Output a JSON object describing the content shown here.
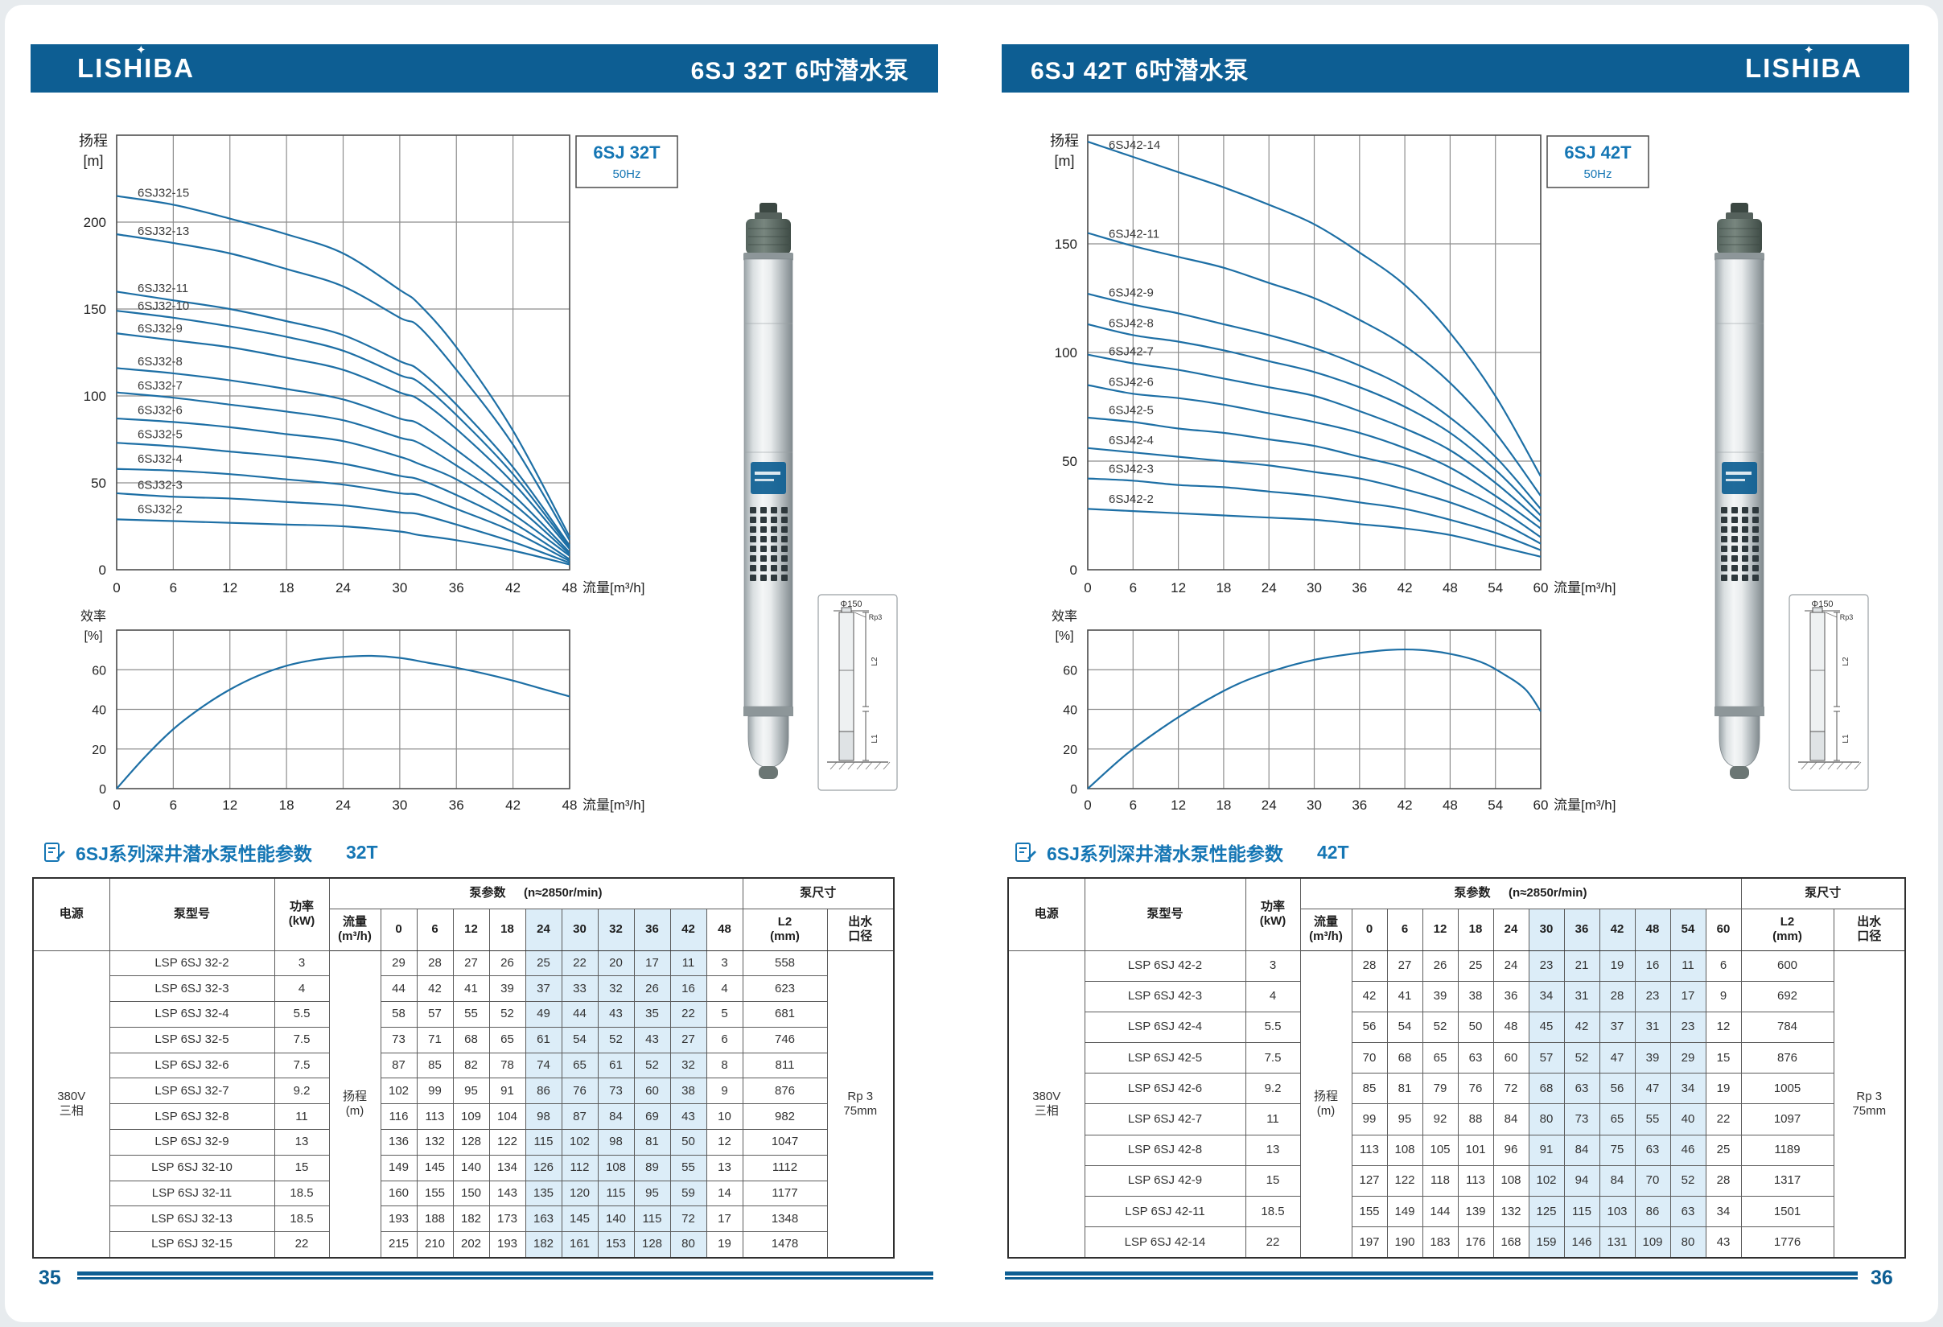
{
  "colors": {
    "header_bg": "#0d5e93",
    "accent_blue": "#1576b4",
    "curve": "#1d6fa5",
    "highlight": "#dcedf8",
    "grid": "#8e8e8e",
    "axis": "#4f4f4f",
    "text": "#222222",
    "page_bg": "#ffffff"
  },
  "shared": {
    "axis": {
      "head_label": "扬程\n[m]",
      "eff_label": "效率\n[%]",
      "flow_label": "流量[m³/h]"
    },
    "table_labels": {
      "power_supply": "电源",
      "model": "泵型号",
      "power": "功率\n(kW)",
      "params": "泵参数",
      "speed": "(n≈2850r/min)",
      "flow": "流量\n(m³/h)",
      "head_unit": "扬程\n(m)",
      "size": "泵尺寸",
      "l2": "L2\n(mm)",
      "outlet": "出水\n口径",
      "supply_value": "380V\n三相",
      "outlet_value": "Rp 3\n75mm"
    },
    "star_icon": "✦"
  },
  "pages": [
    {
      "page_number": "35",
      "logo": "LISHIBA",
      "title": "6SJ 32T 6吋潜水泵",
      "model_box": {
        "model": "6SJ 32T",
        "freq": "50Hz"
      },
      "table_title": {
        "series": "6SJ系列深井潜水泵性能参数",
        "variant": "32T"
      },
      "dim": {
        "phi": "Φ150",
        "rp": "Rp3",
        "l2": "L2",
        "l1": "L1"
      },
      "chart_data": {
        "type": "line",
        "title": "6SJ 32T 扬程-流量曲线",
        "xlabel": "流量[m³/h]",
        "ylabel": "扬程[m]",
        "x": [
          0,
          6,
          12,
          18,
          24,
          30,
          32,
          36,
          42,
          48
        ],
        "xticks": [
          0,
          6,
          12,
          18,
          24,
          30,
          36,
          42,
          48
        ],
        "ylim": [
          0,
          250
        ],
        "yticks": [
          50,
          100,
          150,
          200
        ],
        "series": [
          {
            "name": "6SJ32-15",
            "values": [
              215,
              210,
              202,
              193,
              182,
              161,
              153,
              128,
              80,
              19
            ]
          },
          {
            "name": "6SJ32-13",
            "values": [
              193,
              188,
              182,
              173,
              163,
              145,
              140,
              115,
              72,
              17
            ]
          },
          {
            "name": "6SJ32-11",
            "values": [
              160,
              155,
              150,
              143,
              135,
              120,
              115,
              95,
              59,
              14
            ]
          },
          {
            "name": "6SJ32-10",
            "values": [
              149,
              145,
              140,
              134,
              126,
              112,
              108,
              89,
              55,
              13
            ]
          },
          {
            "name": "6SJ32-9",
            "values": [
              136,
              132,
              128,
              122,
              115,
              102,
              98,
              81,
              50,
              12
            ]
          },
          {
            "name": "6SJ32-8",
            "values": [
              116,
              113,
              109,
              104,
              98,
              87,
              84,
              69,
              43,
              10
            ]
          },
          {
            "name": "6SJ32-7",
            "values": [
              102,
              99,
              95,
              91,
              86,
              76,
              73,
              60,
              38,
              9
            ]
          },
          {
            "name": "6SJ32-6",
            "values": [
              87,
              85,
              82,
              78,
              74,
              65,
              61,
              52,
              32,
              8
            ]
          },
          {
            "name": "6SJ32-5",
            "values": [
              73,
              71,
              68,
              65,
              61,
              54,
              52,
              43,
              27,
              6
            ]
          },
          {
            "name": "6SJ32-4",
            "values": [
              58,
              57,
              55,
              52,
              49,
              44,
              43,
              35,
              22,
              5
            ]
          },
          {
            "name": "6SJ32-3",
            "values": [
              44,
              42,
              41,
              39,
              37,
              33,
              32,
              26,
              16,
              4
            ]
          },
          {
            "name": "6SJ32-2",
            "values": [
              29,
              28,
              27,
              26,
              25,
              22,
              20,
              17,
              11,
              3
            ]
          }
        ]
      },
      "eff_chart": {
        "type": "line",
        "xlabel": "流量[m³/h]",
        "ylabel": "效率[%]",
        "ylim": [
          0,
          80
        ],
        "yticks": [
          20,
          40,
          60
        ],
        "xticks": [
          0,
          6,
          12,
          18,
          24,
          30,
          36,
          42,
          48
        ],
        "x": [
          0,
          3,
          6,
          9,
          12,
          15,
          18,
          21,
          24,
          27,
          30,
          33,
          36,
          39,
          42,
          45,
          48
        ],
        "y": [
          0,
          16,
          30,
          41,
          50,
          57,
          62,
          65,
          66.5,
          67,
          66,
          63.5,
          61,
          58,
          54.5,
          50.5,
          46.5
        ]
      },
      "table": {
        "flow_cols": [
          "0",
          "6",
          "12",
          "18",
          "24",
          "30",
          "32",
          "36",
          "42",
          "48"
        ],
        "highlight": [
          4,
          5,
          6,
          7,
          8
        ],
        "rows": [
          {
            "model": "LSP 6SJ 32-2",
            "kw": "3",
            "heads": [
              "29",
              "28",
              "27",
              "26",
              "25",
              "22",
              "20",
              "17",
              "11",
              "3"
            ],
            "l2": "558"
          },
          {
            "model": "LSP 6SJ 32-3",
            "kw": "4",
            "heads": [
              "44",
              "42",
              "41",
              "39",
              "37",
              "33",
              "32",
              "26",
              "16",
              "4"
            ],
            "l2": "623"
          },
          {
            "model": "LSP 6SJ 32-4",
            "kw": "5.5",
            "heads": [
              "58",
              "57",
              "55",
              "52",
              "49",
              "44",
              "43",
              "35",
              "22",
              "5"
            ],
            "l2": "681"
          },
          {
            "model": "LSP 6SJ 32-5",
            "kw": "7.5",
            "heads": [
              "73",
              "71",
              "68",
              "65",
              "61",
              "54",
              "52",
              "43",
              "27",
              "6"
            ],
            "l2": "746"
          },
          {
            "model": "LSP 6SJ 32-6",
            "kw": "7.5",
            "heads": [
              "87",
              "85",
              "82",
              "78",
              "74",
              "65",
              "61",
              "52",
              "32",
              "8"
            ],
            "l2": "811"
          },
          {
            "model": "LSP 6SJ 32-7",
            "kw": "9.2",
            "heads": [
              "102",
              "99",
              "95",
              "91",
              "86",
              "76",
              "73",
              "60",
              "38",
              "9"
            ],
            "l2": "876"
          },
          {
            "model": "LSP 6SJ 32-8",
            "kw": "11",
            "heads": [
              "116",
              "113",
              "109",
              "104",
              "98",
              "87",
              "84",
              "69",
              "43",
              "10"
            ],
            "l2": "982"
          },
          {
            "model": "LSP 6SJ 32-9",
            "kw": "13",
            "heads": [
              "136",
              "132",
              "128",
              "122",
              "115",
              "102",
              "98",
              "81",
              "50",
              "12"
            ],
            "l2": "1047"
          },
          {
            "model": "LSP 6SJ 32-10",
            "kw": "15",
            "heads": [
              "149",
              "145",
              "140",
              "134",
              "126",
              "112",
              "108",
              "89",
              "55",
              "13"
            ],
            "l2": "1112"
          },
          {
            "model": "LSP 6SJ 32-11",
            "kw": "18.5",
            "heads": [
              "160",
              "155",
              "150",
              "143",
              "135",
              "120",
              "115",
              "95",
              "59",
              "14"
            ],
            "l2": "1177"
          },
          {
            "model": "LSP 6SJ 32-13",
            "kw": "18.5",
            "heads": [
              "193",
              "188",
              "182",
              "173",
              "163",
              "145",
              "140",
              "115",
              "72",
              "17"
            ],
            "l2": "1348"
          },
          {
            "model": "LSP 6SJ 32-15",
            "kw": "22",
            "heads": [
              "215",
              "210",
              "202",
              "193",
              "182",
              "161",
              "153",
              "128",
              "80",
              "19"
            ],
            "l2": "1478"
          }
        ]
      }
    },
    {
      "page_number": "36",
      "logo": "LISHIBA",
      "title": "6SJ 42T 6吋潜水泵",
      "model_box": {
        "model": "6SJ 42T",
        "freq": "50Hz"
      },
      "table_title": {
        "series": "6SJ系列深井潜水泵性能参数",
        "variant": "42T"
      },
      "dim": {
        "phi": "Φ150",
        "rp": "Rp3",
        "l2": "L2",
        "l1": "L1"
      },
      "chart_data": {
        "type": "line",
        "title": "6SJ 42T 扬程-流量曲线",
        "xlabel": "流量[m³/h]",
        "ylabel": "扬程[m]",
        "x": [
          0,
          6,
          12,
          18,
          24,
          30,
          36,
          42,
          48,
          54,
          60
        ],
        "xticks": [
          0,
          6,
          12,
          18,
          24,
          30,
          36,
          42,
          48,
          54,
          60
        ],
        "ylim": [
          0,
          200
        ],
        "yticks": [
          50,
          100,
          150
        ],
        "series": [
          {
            "name": "6SJ42-14",
            "values": [
              197,
              190,
              183,
              176,
              168,
              159,
              146,
              131,
              109,
              80,
              43
            ]
          },
          {
            "name": "6SJ42-11",
            "values": [
              155,
              149,
              144,
              139,
              132,
              125,
              115,
              103,
              86,
              63,
              34
            ]
          },
          {
            "name": "6SJ42-9",
            "values": [
              127,
              122,
              118,
              113,
              108,
              102,
              94,
              84,
              70,
              52,
              28
            ]
          },
          {
            "name": "6SJ42-8",
            "values": [
              113,
              108,
              105,
              101,
              96,
              91,
              84,
              75,
              63,
              46,
              25
            ]
          },
          {
            "name": "6SJ42-7",
            "values": [
              99,
              95,
              92,
              88,
              84,
              80,
              73,
              65,
              55,
              40,
              22
            ]
          },
          {
            "name": "6SJ42-6",
            "values": [
              85,
              81,
              79,
              76,
              72,
              68,
              63,
              56,
              47,
              34,
              19
            ]
          },
          {
            "name": "6SJ42-5",
            "values": [
              70,
              68,
              65,
              63,
              60,
              57,
              52,
              47,
              39,
              29,
              15
            ]
          },
          {
            "name": "6SJ42-4",
            "values": [
              56,
              54,
              52,
              50,
              48,
              45,
              42,
              37,
              31,
              23,
              12
            ]
          },
          {
            "name": "6SJ42-3",
            "values": [
              42,
              41,
              39,
              38,
              36,
              34,
              31,
              28,
              23,
              17,
              9
            ]
          },
          {
            "name": "6SJ42-2",
            "values": [
              28,
              27,
              26,
              25,
              24,
              23,
              21,
              19,
              16,
              11,
              6
            ]
          }
        ]
      },
      "eff_chart": {
        "type": "line",
        "xlabel": "流量[m³/h]",
        "ylabel": "效率[%]",
        "ylim": [
          0,
          80
        ],
        "yticks": [
          20,
          40,
          60
        ],
        "xticks": [
          0,
          6,
          12,
          18,
          24,
          30,
          36,
          42,
          48,
          54,
          60
        ],
        "x": [
          0,
          5,
          10,
          15,
          20,
          25,
          30,
          35,
          40,
          44,
          48,
          52,
          55,
          58,
          60
        ],
        "y": [
          0,
          17,
          31,
          43,
          53,
          60,
          65,
          68,
          70,
          70,
          68,
          64,
          58,
          50,
          39
        ]
      },
      "table": {
        "flow_cols": [
          "0",
          "6",
          "12",
          "18",
          "24",
          "30",
          "36",
          "42",
          "48",
          "54",
          "60"
        ],
        "highlight": [
          5,
          6,
          7,
          8,
          9
        ],
        "rows": [
          {
            "model": "LSP 6SJ 42-2",
            "kw": "3",
            "heads": [
              "28",
              "27",
              "26",
              "25",
              "24",
              "23",
              "21",
              "19",
              "16",
              "11",
              "6"
            ],
            "l2": "600"
          },
          {
            "model": "LSP 6SJ 42-3",
            "kw": "4",
            "heads": [
              "42",
              "41",
              "39",
              "38",
              "36",
              "34",
              "31",
              "28",
              "23",
              "17",
              "9"
            ],
            "l2": "692"
          },
          {
            "model": "LSP 6SJ 42-4",
            "kw": "5.5",
            "heads": [
              "56",
              "54",
              "52",
              "50",
              "48",
              "45",
              "42",
              "37",
              "31",
              "23",
              "12"
            ],
            "l2": "784"
          },
          {
            "model": "LSP 6SJ 42-5",
            "kw": "7.5",
            "heads": [
              "70",
              "68",
              "65",
              "63",
              "60",
              "57",
              "52",
              "47",
              "39",
              "29",
              "15"
            ],
            "l2": "876"
          },
          {
            "model": "LSP 6SJ 42-6",
            "kw": "9.2",
            "heads": [
              "85",
              "81",
              "79",
              "76",
              "72",
              "68",
              "63",
              "56",
              "47",
              "34",
              "19"
            ],
            "l2": "1005"
          },
          {
            "model": "LSP 6SJ 42-7",
            "kw": "11",
            "heads": [
              "99",
              "95",
              "92",
              "88",
              "84",
              "80",
              "73",
              "65",
              "55",
              "40",
              "22"
            ],
            "l2": "1097"
          },
          {
            "model": "LSP 6SJ 42-8",
            "kw": "13",
            "heads": [
              "113",
              "108",
              "105",
              "101",
              "96",
              "91",
              "84",
              "75",
              "63",
              "46",
              "25"
            ],
            "l2": "1189"
          },
          {
            "model": "LSP 6SJ 42-9",
            "kw": "15",
            "heads": [
              "127",
              "122",
              "118",
              "113",
              "108",
              "102",
              "94",
              "84",
              "70",
              "52",
              "28"
            ],
            "l2": "1317"
          },
          {
            "model": "LSP 6SJ 42-11",
            "kw": "18.5",
            "heads": [
              "155",
              "149",
              "144",
              "139",
              "132",
              "125",
              "115",
              "103",
              "86",
              "63",
              "34"
            ],
            "l2": "1501"
          },
          {
            "model": "LSP 6SJ 42-14",
            "kw": "22",
            "heads": [
              "197",
              "190",
              "183",
              "176",
              "168",
              "159",
              "146",
              "131",
              "109",
              "80",
              "43"
            ],
            "l2": "1776"
          }
        ]
      }
    }
  ]
}
